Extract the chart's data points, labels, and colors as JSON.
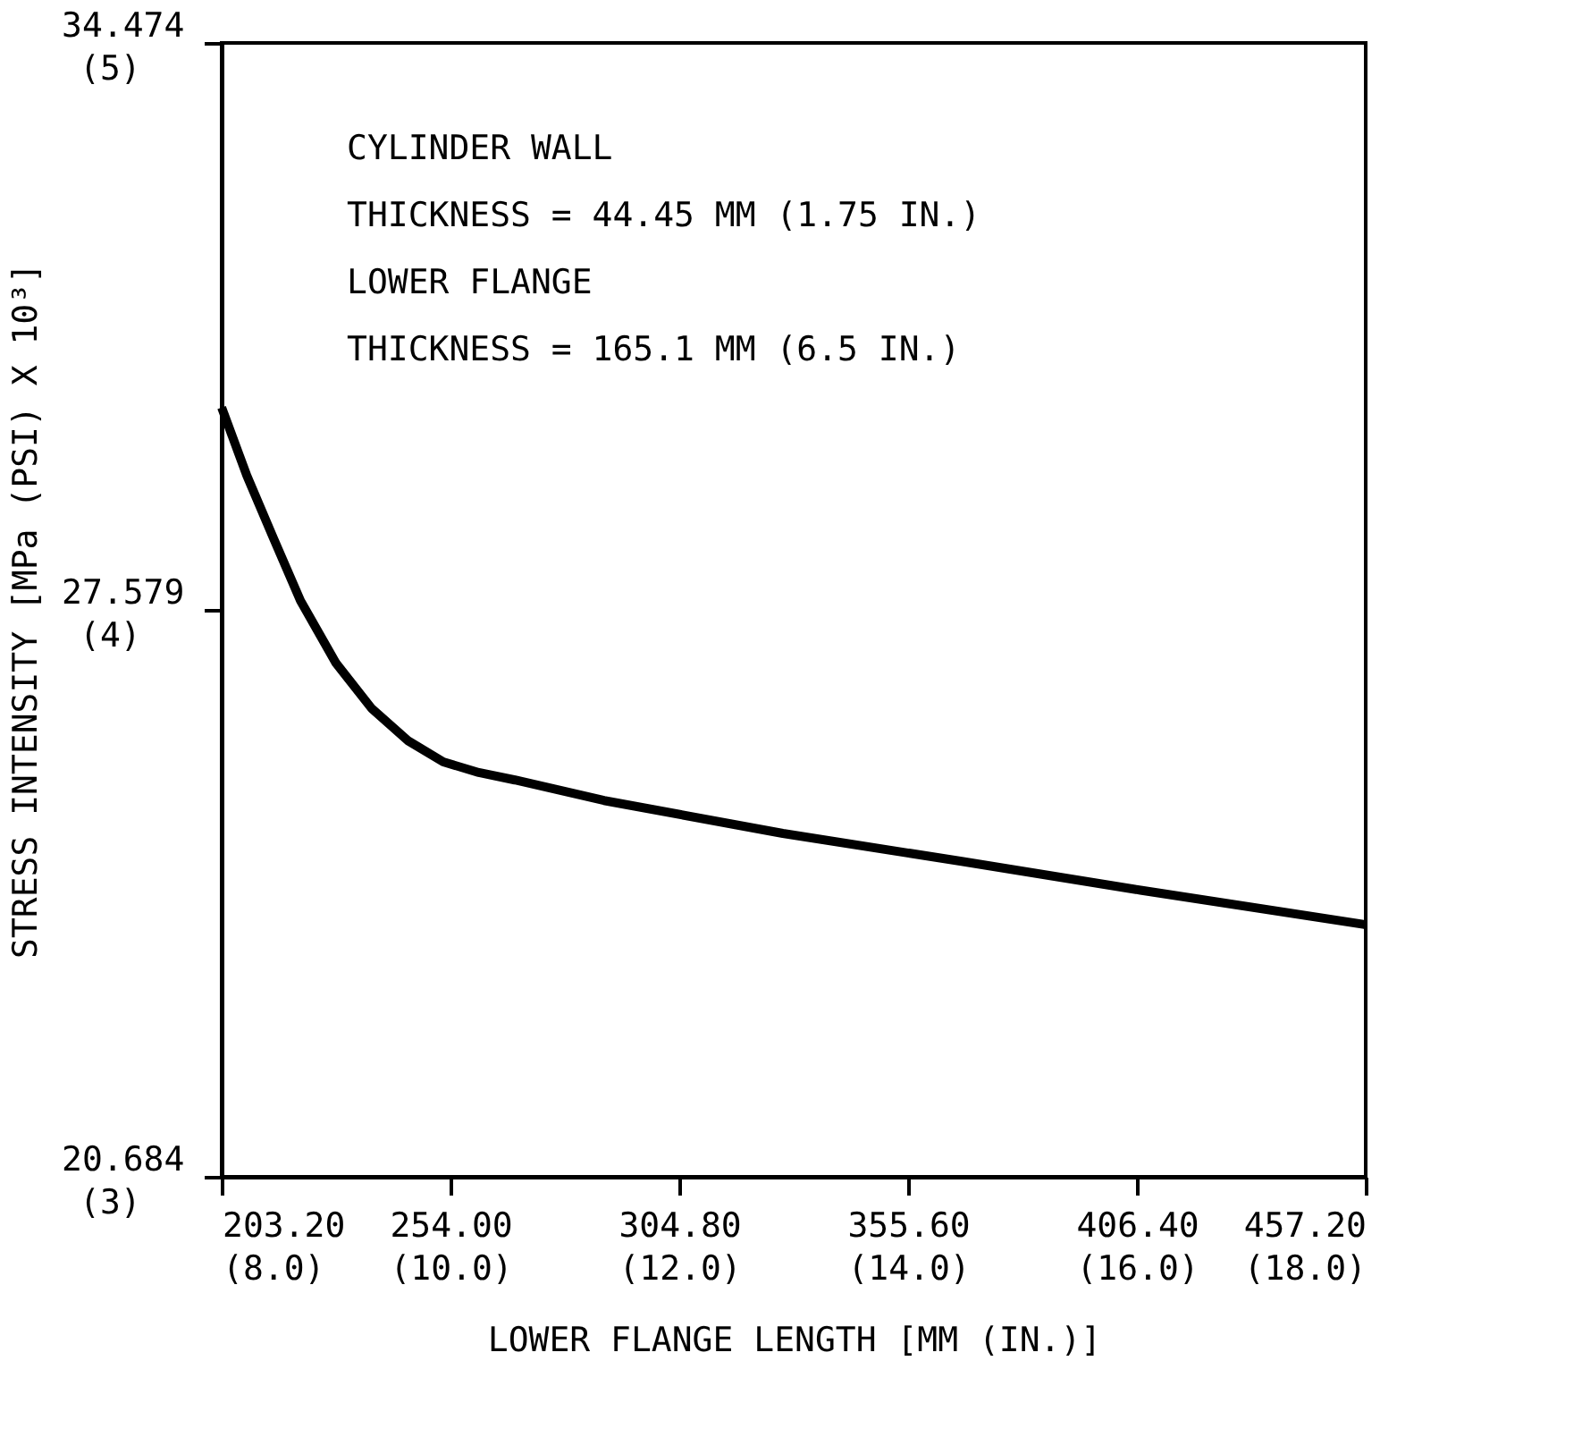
{
  "chart_data": {
    "type": "line",
    "xlabel": "LOWER FLANGE LENGTH [MM (IN.)]",
    "y2label": "STRESS INTENSITY [MPa (PSI) X 10³]",
    "annotations": [
      "CYLINDER WALL",
      "THICKNESS = 44.45 MM (1.75 IN.)",
      "LOWER FLANGE",
      "THICKNESS = 165.1 MM (6.5 IN.)"
    ],
    "series": [
      {
        "color": "#000000",
        "x": [
          203.2,
          208.8,
          214.7,
          220.7,
          228.6,
          236.5,
          244.5,
          252.4,
          260.3,
          268.3,
          288.1,
          327.8,
          367.5,
          407.2,
          457.2
        ],
        "values": [
          30.04,
          29.21,
          28.45,
          27.69,
          26.93,
          26.38,
          25.99,
          25.73,
          25.6,
          25.51,
          25.26,
          24.86,
          24.52,
          24.17,
          23.75
        ]
      }
    ],
    "xlim": [
      203.2,
      457.2
    ],
    "ylim": [
      20.684,
      34.474
    ],
    "xticks": [
      {
        "value": 203.2,
        "label": "203.20"
      },
      {
        "value": 254.0,
        "label": "254.00"
      },
      {
        "value": 304.8,
        "label": "304.80"
      },
      {
        "value": 355.6,
        "label": "355.60"
      },
      {
        "value": 406.4,
        "label": "406.40"
      },
      {
        "value": 457.2,
        "label": "457.20"
      }
    ],
    "yticks": [
      {
        "value": 20.684,
        "label": "20.684"
      },
      {
        "value": 27.579,
        "label": "27.579"
      },
      {
        "value": 34.474,
        "label": "34.474"
      }
    ],
    "x2lim": [
      8,
      18
    ],
    "x2ticks": [
      {
        "value": 8,
        "label": "(8.0)"
      },
      {
        "value": 10,
        "label": "(10.0)"
      },
      {
        "value": 12,
        "label": "(12.0)"
      },
      {
        "value": 14,
        "label": "(14.0)"
      },
      {
        "value": 16,
        "label": "(16.0)"
      },
      {
        "value": 18,
        "label": "(18.0)"
      }
    ],
    "y2lim": [
      3,
      5
    ],
    "y2ticks": [
      {
        "value": 3,
        "label": "(3)"
      },
      {
        "value": 4,
        "label": "(4)"
      },
      {
        "value": 5,
        "label": "(5)"
      }
    ],
    "grid": false,
    "marker": "none",
    "line_style": "solid"
  }
}
